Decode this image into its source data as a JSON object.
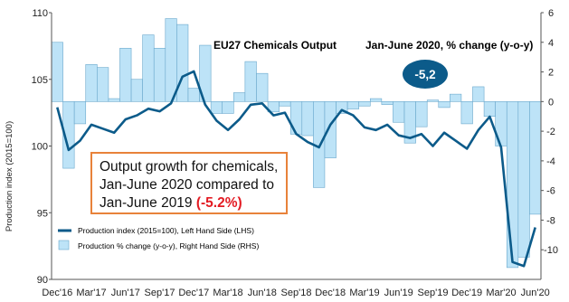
{
  "chart_data": {
    "type": "bar+line",
    "title": "EU27 Chemicals Output",
    "subtitle": "Jan-June 2020, % change (y-o-y)",
    "badge": "-5,2",
    "ylabel": "Production  index (2015=100)",
    "ylim_left": [
      90,
      110
    ],
    "ylim_right": [
      -12,
      6
    ],
    "left_ticks": [
      "110",
      "105",
      "100",
      "95",
      "90"
    ],
    "right_ticks": [
      "6",
      "4",
      "2",
      "0",
      "-2",
      "-4",
      "-6",
      "-8",
      "-10"
    ],
    "x_tick_labels": [
      "Dec'16",
      "Mar'17",
      "Jun'17",
      "Sep'17",
      "Dec'17",
      "Mar'18",
      "Jun'18",
      "Sep'18",
      "Dec'18",
      "Mar'19",
      "Jun'19",
      "Sep'19",
      "Dec'19",
      "Mar'20",
      "Jun'20"
    ],
    "months": [
      "Dec'16",
      "Jan'17",
      "Feb'17",
      "Mar'17",
      "Apr'17",
      "May'17",
      "Jun'17",
      "Jul'17",
      "Aug'17",
      "Sep'17",
      "Oct'17",
      "Nov'17",
      "Dec'17",
      "Jan'18",
      "Feb'18",
      "Mar'18",
      "Apr'18",
      "May'18",
      "Jun'18",
      "Jul'18",
      "Aug'18",
      "Sep'18",
      "Oct'18",
      "Nov'18",
      "Dec'18",
      "Jan'19",
      "Feb'19",
      "Mar'19",
      "Apr'19",
      "May'19",
      "Jun'19",
      "Jul'19",
      "Aug'19",
      "Sep'19",
      "Oct'19",
      "Nov'19",
      "Dec'19",
      "Jan'20",
      "Feb'20",
      "Mar'20",
      "Apr'20",
      "May'20",
      "Jun'20"
    ],
    "series": [
      {
        "name": "Production % change (y-o-y), Right Hand Side (RHS)",
        "type": "bar",
        "color": "#bde3f7",
        "values": [
          4.0,
          -4.5,
          -1.5,
          2.5,
          2.3,
          0.2,
          3.6,
          1.5,
          4.5,
          3.6,
          5.6,
          5.2,
          0.9,
          3.8,
          -0.8,
          -0.8,
          0.6,
          2.7,
          1.9,
          -0.7,
          -0.3,
          -2.2,
          -2.3,
          -5.8,
          -3.8,
          -0.8,
          -0.5,
          -0.3,
          0.2,
          -0.2,
          -1.4,
          -2.8,
          -1.7,
          0.1,
          -0.4,
          0.5,
          -1.5,
          1.0,
          -1.0,
          -3.0,
          -11.2,
          -10.5,
          -7.6
        ]
      },
      {
        "name": "Production index (2015=100), Left Hand Side (LHS)",
        "type": "line",
        "color": "#0c5b8a",
        "values": [
          102.9,
          99.7,
          100.4,
          101.6,
          101.3,
          101.0,
          102.0,
          102.3,
          102.8,
          102.6,
          103.2,
          105.2,
          105.6,
          103.1,
          101.9,
          101.2,
          102.0,
          103.1,
          103.2,
          102.3,
          102.5,
          100.9,
          100.3,
          99.9,
          101.6,
          102.7,
          102.3,
          101.4,
          101.2,
          101.6,
          100.8,
          100.6,
          100.9,
          100.0,
          101.0,
          100.4,
          99.8,
          101.2,
          102.2,
          99.9,
          91.3,
          91.0,
          93.9
        ]
      }
    ],
    "legend": [
      "Production index (2015=100), Left Hand Side (LHS)",
      "Production % change (y-o-y), Right Hand Side (RHS)"
    ],
    "legend_position": "bottom-left",
    "annotation": {
      "line1": "Output growth for chemicals,",
      "line2": "Jan-June 2020 compared to",
      "line3_start": "Jan-June 2019 ",
      "line3_highlight": "(-5.2%)"
    },
    "colors": {
      "bar": "#bde3f7",
      "bar_stroke": "#6aa8cc",
      "line": "#0c5b8a",
      "badge": "#0c5b8a",
      "note_border": "#e8823a",
      "highlight": "#e31b23"
    }
  }
}
